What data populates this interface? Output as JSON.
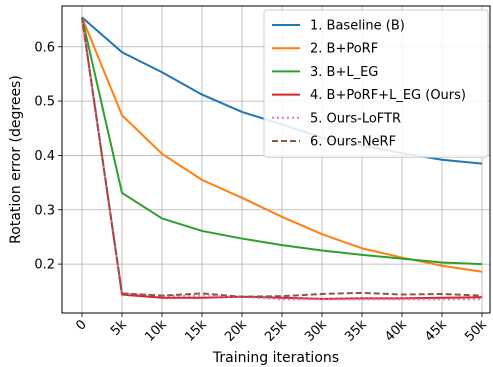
{
  "chart_data": {
    "type": "line",
    "title": "",
    "xlabel": "Training iterations",
    "ylabel": "Rotation error (degrees)",
    "x": [
      0,
      5,
      10,
      15,
      20,
      25,
      30,
      35,
      40,
      45,
      50
    ],
    "x_tick_labels": [
      "0",
      "5k",
      "10k",
      "15k",
      "20k",
      "25k",
      "30k",
      "35k",
      "40k",
      "45k",
      "50k"
    ],
    "y_ticks": [
      0.2,
      0.3,
      0.4,
      0.5,
      0.6
    ],
    "y_tick_labels": [
      "0.2",
      "0.3",
      "0.4",
      "0.5",
      "0.6"
    ],
    "xlim": [
      -2.5,
      51
    ],
    "ylim": [
      0.11,
      0.675
    ],
    "grid": true,
    "legend_position": "top-right",
    "series": [
      {
        "name": "1. Baseline (B)",
        "color": "#1f77b4",
        "style": "solid",
        "values": [
          0.654,
          0.59,
          0.553,
          0.512,
          0.48,
          0.457,
          0.433,
          0.418,
          0.404,
          0.392,
          0.385
        ]
      },
      {
        "name": "2. B+PoRF",
        "color": "#ff7f0e",
        "style": "solid",
        "values": [
          0.654,
          0.474,
          0.403,
          0.355,
          0.322,
          0.287,
          0.255,
          0.229,
          0.212,
          0.197,
          0.186
        ]
      },
      {
        "name": "3. B+L_EG",
        "color": "#2ca02c",
        "style": "solid",
        "values": [
          0.654,
          0.331,
          0.284,
          0.261,
          0.247,
          0.235,
          0.225,
          0.217,
          0.21,
          0.203,
          0.2
        ]
      },
      {
        "name": "4. B+PoRF+L_EG (Ours)",
        "color": "#d62728",
        "style": "solid",
        "values": [
          0.654,
          0.144,
          0.138,
          0.138,
          0.14,
          0.138,
          0.136,
          0.137,
          0.137,
          0.138,
          0.139
        ]
      },
      {
        "name": "5. Ours-LoFTR",
        "color": "#e377c2",
        "style": "dotted",
        "values": [
          0.654,
          0.146,
          0.142,
          0.141,
          0.14,
          0.135,
          0.135,
          0.135,
          0.135,
          0.135,
          0.135
        ]
      },
      {
        "name": "6. Ours-NeRF",
        "color": "#8c564b",
        "style": "dashed",
        "values": [
          0.654,
          0.146,
          0.142,
          0.146,
          0.14,
          0.141,
          0.145,
          0.147,
          0.144,
          0.145,
          0.142
        ]
      }
    ]
  }
}
